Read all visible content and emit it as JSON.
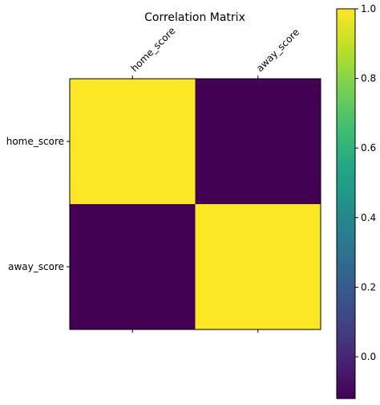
{
  "chart_data": {
    "type": "heatmap",
    "title": "Correlation Matrix",
    "x_labels": [
      "home_score",
      "away_score"
    ],
    "y_labels": [
      "home_score",
      "away_score"
    ],
    "matrix": [
      [
        1.0,
        -0.12
      ],
      [
        -0.12,
        1.0
      ]
    ],
    "colormap": "viridis",
    "colorbar": {
      "min": -0.12,
      "max": 1.0,
      "ticks": [
        0.0,
        0.2,
        0.4,
        0.6,
        0.8,
        1.0
      ],
      "tick_labels": [
        "0.0",
        "0.2",
        "0.4",
        "0.6",
        "0.8",
        "1.0"
      ]
    },
    "grid": false,
    "x_tick_position": "top"
  }
}
